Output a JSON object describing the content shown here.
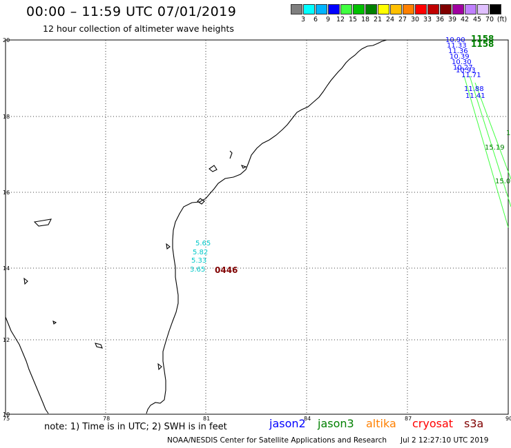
{
  "header": {
    "title": "00:00 – 11:59 UTC 07/01/2019",
    "subtitle": "12 hour collection of altimeter wave heights"
  },
  "colorscale": {
    "labels": [
      "3",
      "6",
      "9",
      "12",
      "15",
      "18",
      "21",
      "24",
      "27",
      "30",
      "33",
      "36",
      "39",
      "42",
      "45",
      "70"
    ],
    "unit": "(ft)",
    "colors": [
      "#7f7f7f",
      "#00ffff",
      "#00b4ff",
      "#0000ff",
      "#40ff40",
      "#00c000",
      "#008000",
      "#ffff00",
      "#ffc000",
      "#ff8000",
      "#ff0000",
      "#c00000",
      "#800000",
      "#a000a0",
      "#c080ff",
      "#e0c0ff",
      "#000000"
    ]
  },
  "map": {
    "lat_labels": [
      "20",
      "18",
      "16",
      "14",
      "12",
      "10"
    ],
    "lon_labels": [
      "75",
      "78",
      "81",
      "84",
      "87",
      "90"
    ],
    "point_labels": [
      {
        "text": "5.65",
        "color": "#00c8c8"
      },
      {
        "text": "5.82",
        "color": "#00c8c8"
      },
      {
        "text": "5.33",
        "color": "#00c8c8"
      },
      {
        "text": "3.65",
        "color": "#00c8c8"
      },
      {
        "text": "0446",
        "color": "#800000"
      },
      {
        "text": "10.90",
        "color": "#0000ff"
      },
      {
        "text": "11.33",
        "color": "#0000ff"
      },
      {
        "text": "11.36",
        "color": "#0000ff"
      },
      {
        "text": "10.39",
        "color": "#0000ff"
      },
      {
        "text": "10.30",
        "color": "#0000ff"
      },
      {
        "text": "10.27",
        "color": "#0000ff"
      },
      {
        "text": "10.93",
        "color": "#0000ff"
      },
      {
        "text": "11.71",
        "color": "#0000ff"
      },
      {
        "text": "11.88",
        "color": "#0000ff"
      },
      {
        "text": "11.41",
        "color": "#0000ff"
      },
      {
        "text": "1158",
        "color": "#008000"
      },
      {
        "text": "1158",
        "color": "#008000"
      },
      {
        "text": "15.19",
        "color": "#008000"
      },
      {
        "text": "15.0",
        "color": "#008000"
      },
      {
        "text": "1",
        "color": "#008000"
      }
    ]
  },
  "note": "note:  1) Time is in UTC;  2) SWH is in feet",
  "legend": [
    {
      "label": "jason2",
      "color": "#0000ff"
    },
    {
      "label": "jason3",
      "color": "#008000"
    },
    {
      "label": "altika",
      "color": "#ff8000"
    },
    {
      "label": "cryosat",
      "color": "#ff0000"
    },
    {
      "label": "s3a",
      "color": "#800000"
    }
  ],
  "footer": {
    "credit": "NOAA/NESDIS Center for Satellite Applications and Research",
    "timestamp": "Jul  2 12:27:10 UTC 2019"
  }
}
